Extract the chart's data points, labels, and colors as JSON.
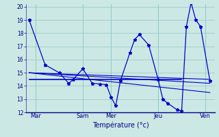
{
  "xlabel": "Température (°c)",
  "background_color": "#cce8e4",
  "grid_color": "#99cccc",
  "line_color": "#0000cc",
  "xlim": [
    0,
    20
  ],
  "ylim": [
    12,
    20.2
  ],
  "yticks": [
    12,
    13,
    14,
    15,
    16,
    17,
    18,
    19,
    20
  ],
  "day_labels": [
    "Mar",
    "Sam",
    "Mer",
    "Jeu",
    "Ven"
  ],
  "day_positions": [
    1.0,
    6.0,
    9.0,
    14.0,
    19.0
  ],
  "main_series": {
    "x": [
      0.3,
      2.0,
      3.5,
      4.5,
      5.0,
      6.0,
      7.0,
      7.8,
      8.5,
      9.0,
      9.5,
      10.0,
      11.0,
      11.5,
      12.0,
      13.0,
      14.0,
      14.5,
      15.0,
      16.0,
      16.5,
      17.0,
      17.5,
      18.0,
      18.5,
      19.5
    ],
    "y": [
      19.0,
      15.6,
      15.0,
      14.2,
      14.5,
      15.3,
      14.2,
      14.15,
      14.1,
      13.15,
      12.5,
      14.4,
      16.5,
      17.5,
      17.9,
      17.1,
      14.5,
      13.0,
      12.7,
      12.2,
      12.1,
      18.5,
      20.3,
      19.0,
      18.5,
      14.4
    ]
  },
  "trend1_x": [
    0.3,
    19.5
  ],
  "trend1_y": [
    15.0,
    14.5
  ],
  "trend2_x": [
    0.3,
    19.5
  ],
  "trend2_y": [
    15.0,
    13.5
  ],
  "trend3_x": [
    0.3,
    19.5
  ],
  "trend3_y": [
    15.0,
    14.2
  ],
  "flat_line_x": [
    0.3,
    16.5
  ],
  "flat_line_y": [
    14.5,
    14.5
  ],
  "vert_line_positions": [
    1.0,
    6.0,
    9.0,
    14.0,
    19.0
  ]
}
